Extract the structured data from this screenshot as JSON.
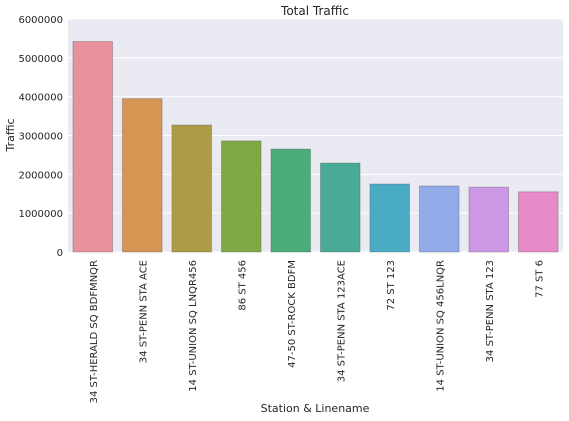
{
  "chart_data": {
    "type": "bar",
    "title": "Total Traffic",
    "xlabel": "Station & Linename",
    "ylabel": "Traffic",
    "ylim": [
      0,
      6000000
    ],
    "yticks": [
      "0",
      "1000000",
      "2000000",
      "3000000",
      "4000000",
      "5000000",
      "6000000"
    ],
    "categories": [
      "34 ST-HERALD SQ BDFMNQR",
      "34 ST-PENN STA ACE",
      "14 ST-UNION SQ LNQR456",
      "86 ST 456",
      "47-50 ST-ROCK BDFM",
      "34 ST-PENN STA 123ACE",
      "72 ST 123",
      "14 ST-UNION SQ 456LNQR",
      "34 ST-PENN STA 123",
      "77 ST 6"
    ],
    "values": [
      5420000,
      3950000,
      3270000,
      2860000,
      2650000,
      2290000,
      1750000,
      1700000,
      1670000,
      1550000
    ],
    "colors": [
      "#e8919e",
      "#d69553",
      "#ad9b45",
      "#7ea944",
      "#4aac79",
      "#4aaa98",
      "#4aabc5",
      "#92abe8",
      "#cd97e6",
      "#e68bc8"
    ],
    "grid": true,
    "background": "#eaeaf2"
  }
}
